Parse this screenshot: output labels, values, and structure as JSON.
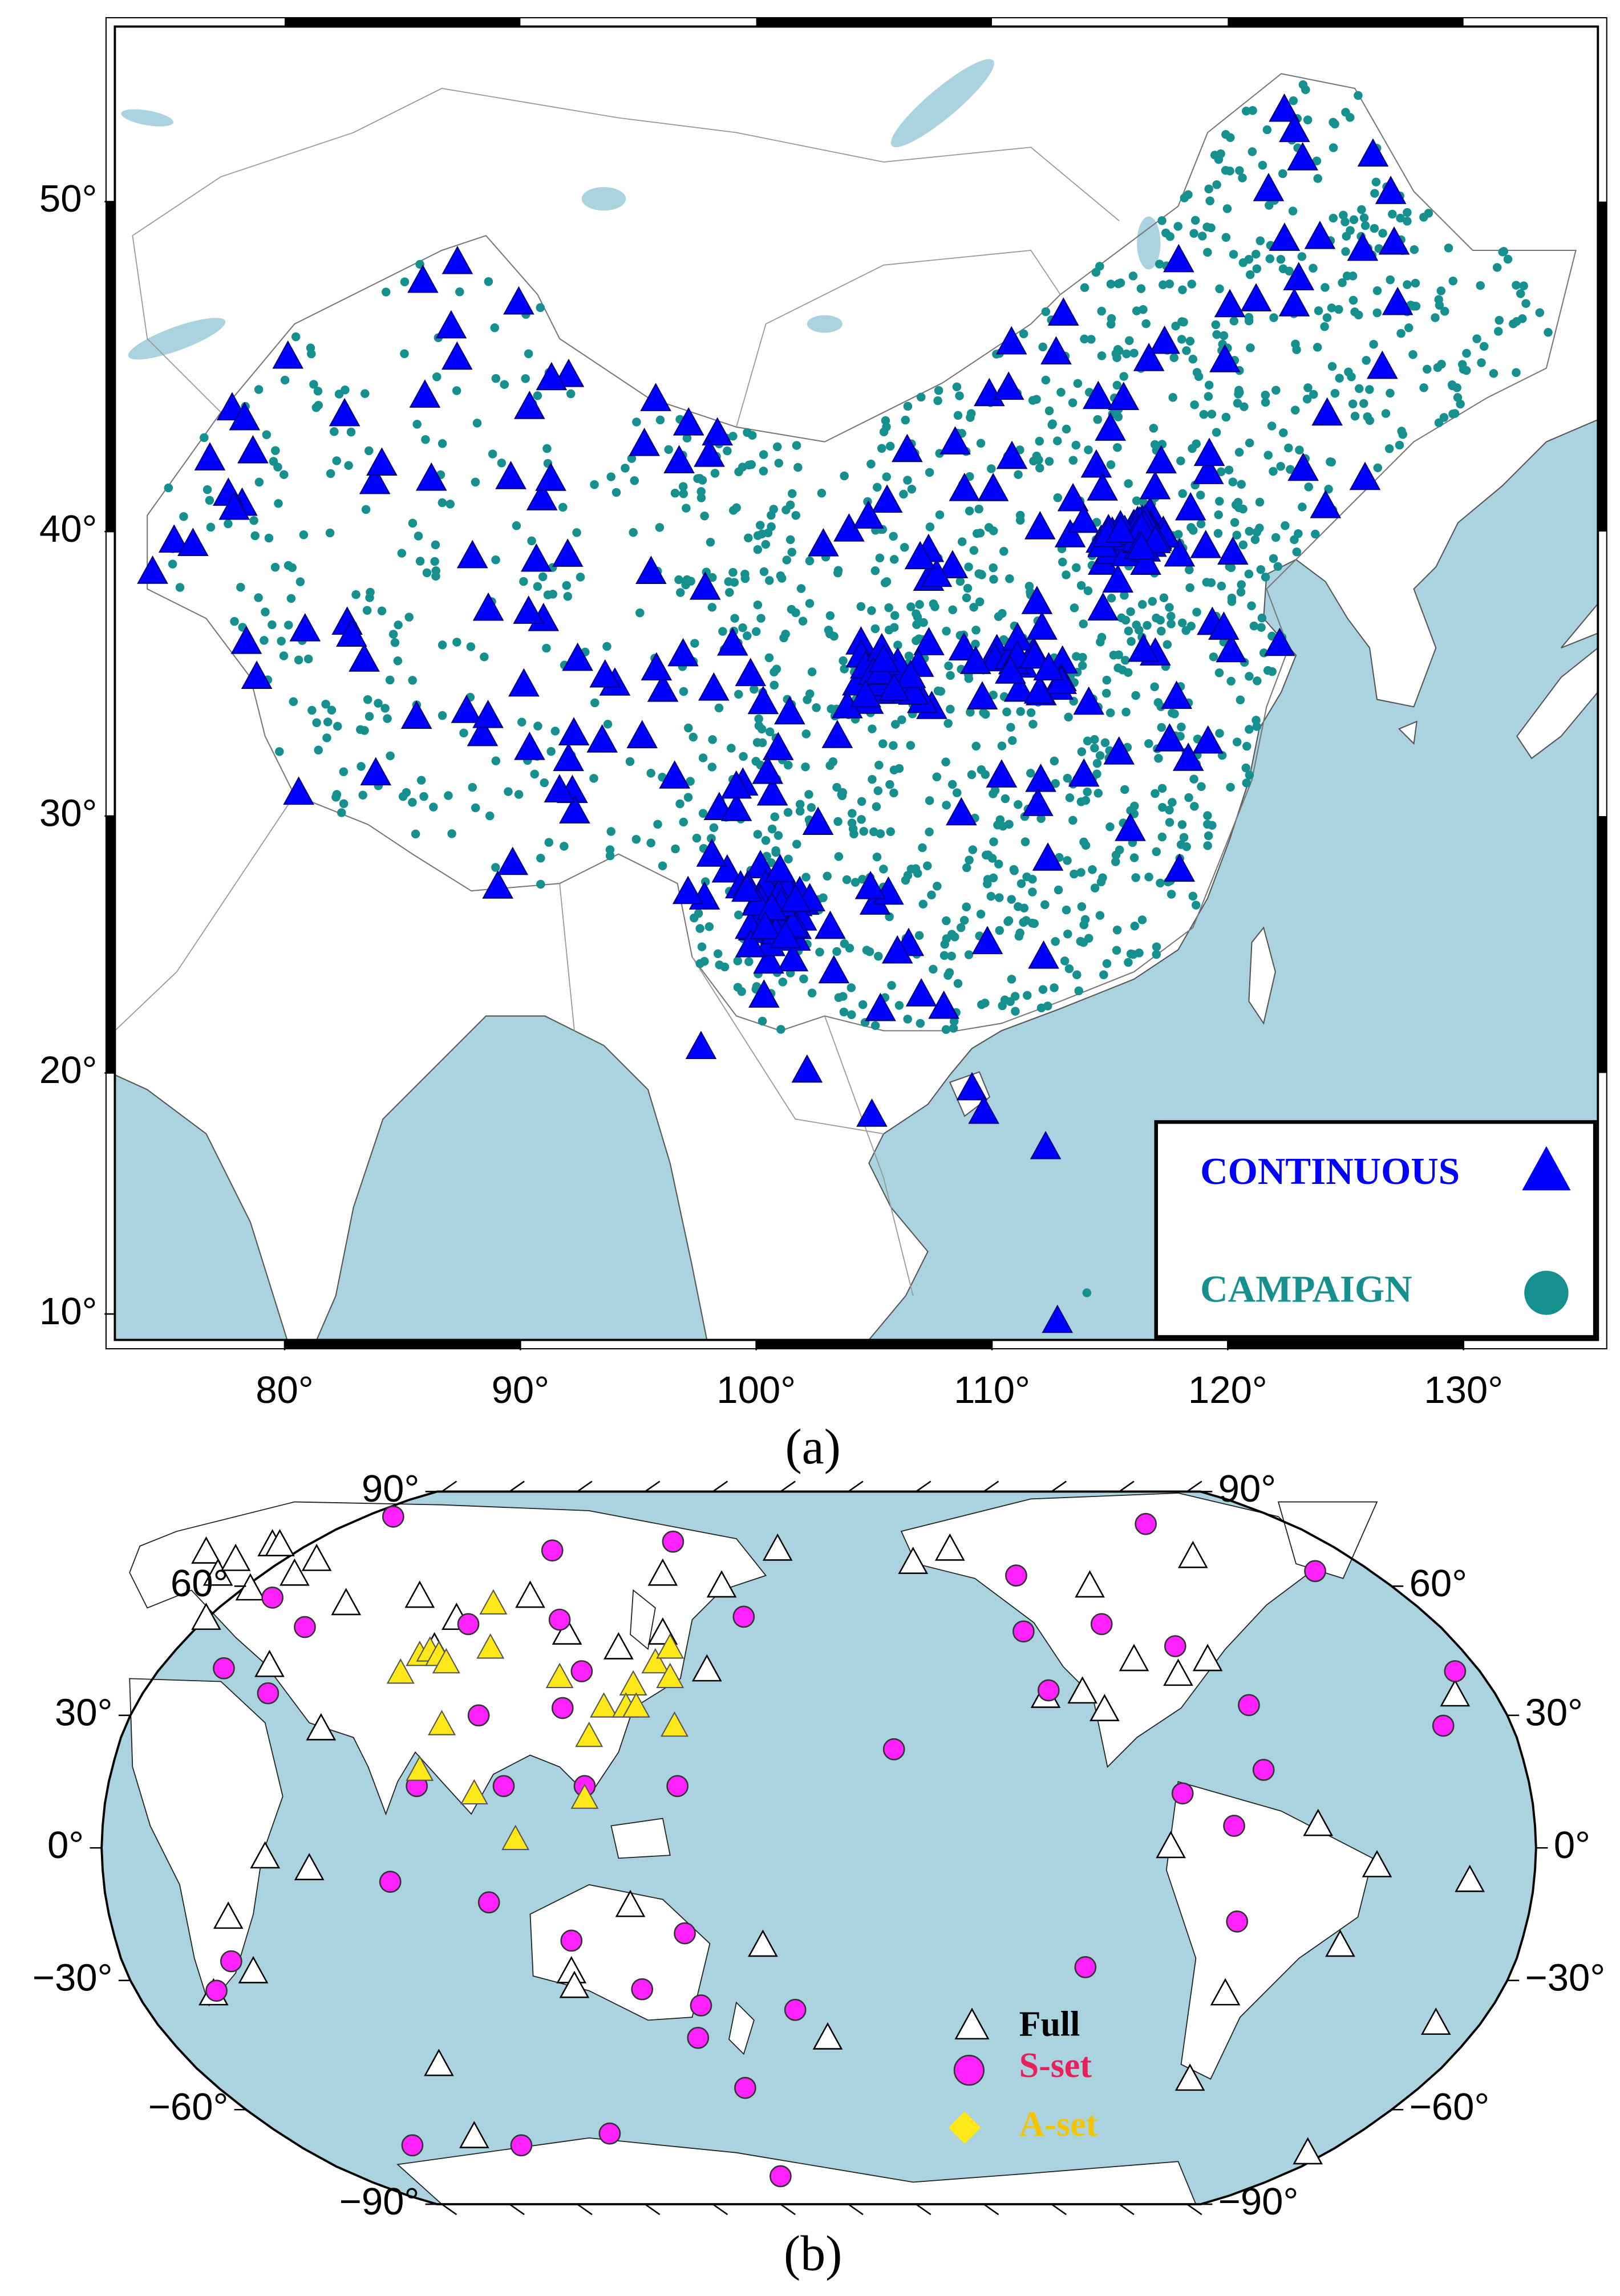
{
  "panel_a": {
    "label": "(a)",
    "xlim": [
      72.8,
      135.7
    ],
    "ylim": [
      8.9,
      54.6
    ],
    "xticks": [
      {
        "value": 80,
        "label": "80°"
      },
      {
        "value": 90,
        "label": "90°"
      },
      {
        "value": 100,
        "label": "100°"
      },
      {
        "value": 110,
        "label": "110°"
      },
      {
        "value": 120,
        "label": "120°"
      },
      {
        "value": 130,
        "label": "130°"
      }
    ],
    "yticks": [
      {
        "value": 10,
        "label": "10°"
      },
      {
        "value": 20,
        "label": "20°"
      },
      {
        "value": 30,
        "label": "30°"
      },
      {
        "value": 40,
        "label": "40°"
      },
      {
        "value": 50,
        "label": "50°"
      }
    ],
    "legend": [
      {
        "name": "CONTINUOUS",
        "color": "#0000ff"
      },
      {
        "name": "CAMPAIGN",
        "color": "#168f8f"
      }
    ]
  },
  "panel_b": {
    "label": "(b)",
    "ylim": [
      -90,
      90
    ],
    "yticks": [
      {
        "value": 90,
        "label": "90°"
      },
      {
        "value": 60,
        "label": "60°"
      },
      {
        "value": 30,
        "label": "30°"
      },
      {
        "value": 0,
        "label": "0°"
      },
      {
        "value": -30,
        "label": "−30°"
      },
      {
        "value": -60,
        "label": "−60°"
      },
      {
        "value": -90,
        "label": "−90°"
      }
    ],
    "legend": [
      {
        "name": "Full",
        "color": "#ffffff",
        "text_color": "#000000"
      },
      {
        "name": "S-set",
        "color": "#ff22ff",
        "text_color": "#e8205a"
      },
      {
        "name": "A-set",
        "color": "#ffe81a",
        "text_color": "#f5c400"
      }
    ]
  }
}
